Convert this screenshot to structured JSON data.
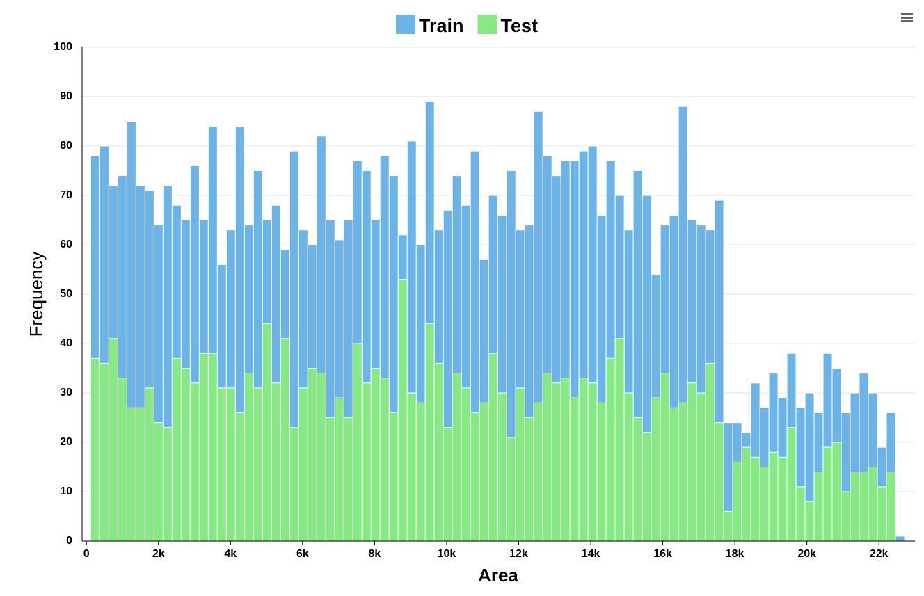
{
  "chart_data": {
    "type": "histogram",
    "x_label": "Area",
    "y_label": "Frequency",
    "legend": "top",
    "grid": true,
    "overlay": true,
    "bins": [
      120,
      371,
      622,
      873,
      1124,
      1375,
      1626,
      1877,
      2128,
      2379,
      2630,
      2881,
      3132,
      3383,
      3634,
      3885,
      4136,
      4387,
      4638,
      4889,
      5140,
      5391,
      5642,
      5893,
      6144,
      6395,
      6646,
      6897,
      7148,
      7399,
      7650,
      7901,
      8152,
      8403,
      8654,
      8905,
      9156,
      9407,
      9658,
      9909,
      10160,
      10411,
      10662,
      10913,
      11164,
      11415,
      11666,
      11917,
      12168,
      12419,
      12670,
      12921,
      13172,
      13423,
      13674,
      13925,
      14176,
      14427,
      14678,
      14929,
      15180,
      15431,
      15682,
      15933,
      16184,
      16435,
      16686,
      16937,
      17188,
      17439,
      17690,
      17941,
      18192,
      18443,
      18694,
      18945,
      19196,
      19447,
      19698,
      19949,
      20200,
      20451,
      20702,
      20953,
      21204,
      21455,
      21706,
      21957,
      22208,
      22459,
      22710
    ],
    "series": [
      {
        "name": "Train",
        "color": "#6cb4e8",
        "values": [
          78,
          80,
          72,
          74,
          85,
          72,
          71,
          64,
          72,
          68,
          65,
          76,
          65,
          84,
          56,
          63,
          84,
          64,
          75,
          65,
          68,
          59,
          79,
          63,
          60,
          82,
          65,
          61,
          65,
          77,
          75,
          65,
          78,
          74,
          62,
          81,
          60,
          89,
          63,
          67,
          74,
          68,
          79,
          57,
          70,
          66,
          75,
          63,
          64,
          87,
          78,
          74,
          77,
          77,
          79,
          80,
          66,
          77,
          70,
          63,
          75,
          70,
          54,
          64,
          66,
          88,
          65,
          64,
          63,
          69,
          24,
          24,
          22,
          32,
          27,
          34,
          29,
          38,
          27,
          30,
          26,
          38,
          35,
          26,
          30,
          34,
          30,
          19,
          26,
          1
        ]
      },
      {
        "name": "Test",
        "color": "#86e984",
        "values": [
          37,
          36,
          41,
          33,
          27,
          27,
          31,
          24,
          23,
          37,
          35,
          32,
          38,
          38,
          31,
          31,
          26,
          34,
          31,
          44,
          32,
          41,
          23,
          31,
          35,
          34,
          25,
          29,
          25,
          40,
          32,
          35,
          33,
          26,
          53,
          30,
          28,
          44,
          36,
          23,
          34,
          31,
          26,
          28,
          38,
          30,
          21,
          31,
          25,
          28,
          34,
          32,
          33,
          29,
          33,
          32,
          28,
          37,
          41,
          30,
          25,
          22,
          29,
          34,
          27,
          28,
          32,
          30,
          36,
          24,
          6,
          16,
          19,
          17,
          15,
          18,
          17,
          23,
          11,
          8,
          14,
          19,
          20,
          10,
          14,
          14,
          15,
          11,
          14,
          0
        ]
      }
    ],
    "xlim": [
      -120,
      23000
    ],
    "xticks": [
      0,
      {
        "value": 2000,
        "label": "2k"
      },
      {
        "value": 4000,
        "label": "4k"
      },
      {
        "value": 6000,
        "label": "6k"
      },
      {
        "value": 8000,
        "label": "8k"
      },
      {
        "value": 10000,
        "label": "10k"
      },
      {
        "value": 12000,
        "label": "12k"
      },
      {
        "value": 14000,
        "label": "14k"
      },
      {
        "value": 16000,
        "label": "16k"
      },
      {
        "value": 18000,
        "label": "18k"
      },
      {
        "value": 20000,
        "label": "20k"
      },
      {
        "value": 22000,
        "label": "22k"
      }
    ],
    "ylim": [
      0,
      100
    ],
    "yticks": [
      0,
      10,
      20,
      30,
      40,
      50,
      60,
      70,
      80,
      90,
      100
    ]
  }
}
